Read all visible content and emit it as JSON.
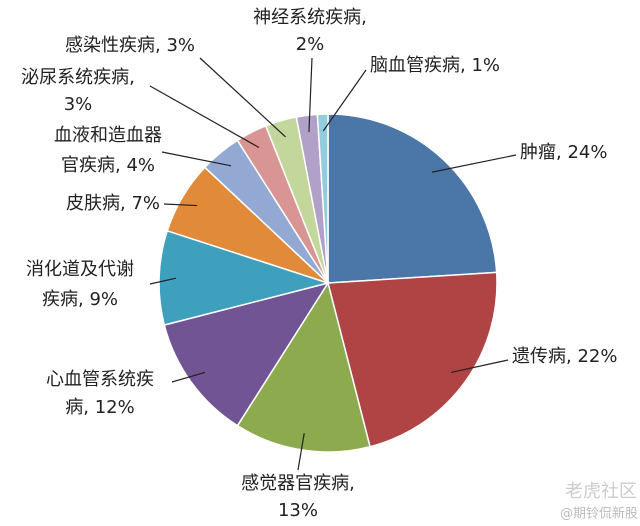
{
  "chart_data": {
    "type": "pie",
    "values": [
      24,
      22,
      13,
      12,
      9,
      7,
      4,
      3,
      3,
      2,
      1
    ],
    "value_labels": [
      [
        "肿瘤, 24%"
      ],
      [
        "遗传病, 22%"
      ],
      [
        "感觉器官疾病,",
        "13%"
      ],
      [
        "心血管系统疾",
        "病, 12%"
      ],
      [
        "消化道及代谢",
        "疾病, 9%"
      ],
      [
        "皮肤病, 7%"
      ],
      [
        "血液和造血器",
        "官疾病, 4%"
      ],
      [
        "泌尿系统疾病,",
        "3%"
      ],
      [
        "感染性疾病, 3%"
      ],
      [
        "神经系统疾病,",
        "2%"
      ],
      [
        "脑血管疾病, 1%"
      ]
    ],
    "colors": [
      "#4a76a8",
      "#b04343",
      "#8eaa4e",
      "#705493",
      "#3ea0bd",
      "#e08a3a",
      "#93a9d4",
      "#d99594",
      "#c3d69b",
      "#b1a0c7",
      "#93cddd"
    ],
    "watermark": [
      "老虎社区",
      "@期铃侃新股"
    ]
  }
}
